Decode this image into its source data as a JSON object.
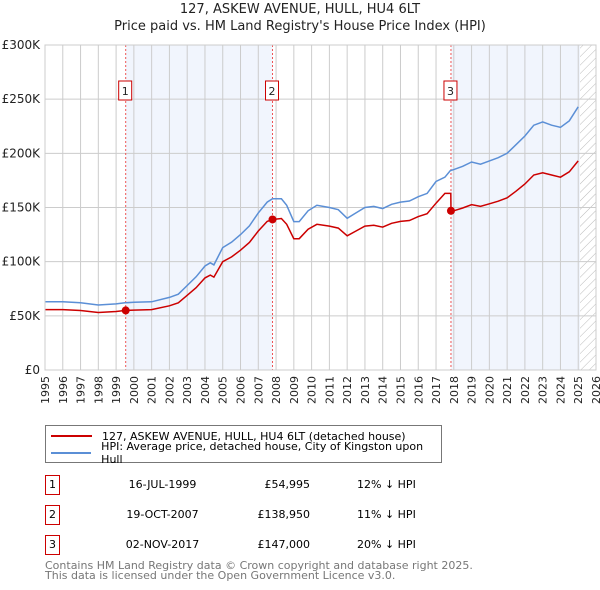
{
  "title": "127, ASKEW AVENUE, HULL, HU4 6LT",
  "subtitle": "Price paid vs. HM Land Registry's House Price Index (HPI)",
  "chart_data": {
    "type": "line",
    "title": "127, ASKEW AVENUE, HULL, HU4 6LT",
    "xlim": [
      1995,
      2026
    ],
    "ylim": [
      0,
      300000
    ],
    "yticks": [
      0,
      50000,
      100000,
      150000,
      200000,
      250000,
      300000
    ],
    "ytick_labels": [
      "£0",
      "£50K",
      "£100K",
      "£150K",
      "£200K",
      "£250K",
      "£300K"
    ],
    "xticks": [
      "1995",
      "1996",
      "1997",
      "1998",
      "1999",
      "2000",
      "2001",
      "2002",
      "2003",
      "2004",
      "2005",
      "2006",
      "2007",
      "2008",
      "2009",
      "2010",
      "2011",
      "2012",
      "2013",
      "2014",
      "2015",
      "2016",
      "2017",
      "2018",
      "2019",
      "2020",
      "2021",
      "2022",
      "2023",
      "2024",
      "2025",
      "2026"
    ],
    "grid": true,
    "forecast_hatch_from": 2025.1,
    "series": [
      {
        "name": "127, ASKEW AVENUE, HULL, HU4 6LT (detached house)",
        "color": "#cc0000",
        "x": [
          1995,
          1996,
          1997,
          1998,
          1999,
          1999.54,
          2000,
          2001,
          2002,
          2002.5,
          2003,
          2003.5,
          2004,
          2004.3,
          2004.5,
          2005,
          2005.5,
          2006,
          2006.5,
          2007,
          2007.5,
          2007.8,
          2008.3,
          2008.6,
          2009,
          2009.3,
          2009.8,
          2010.3,
          2011,
          2011.5,
          2012,
          2012.5,
          2013,
          2013.5,
          2014,
          2014.5,
          2015,
          2015.5,
          2016,
          2016.5,
          2017,
          2017.5,
          2017.83,
          2017.84,
          2018,
          2018.5,
          2019,
          2019.5,
          2020,
          2020.5,
          2021,
          2021.5,
          2022,
          2022.5,
          2023,
          2023.5,
          2024,
          2024.5,
          2025
        ],
        "y": [
          55800,
          55800,
          54900,
          53100,
          54000,
          54995,
          55300,
          55800,
          59300,
          62000,
          69000,
          76000,
          85000,
          87600,
          85800,
          100000,
          104400,
          110600,
          117700,
          128300,
          137200,
          138950,
          139800,
          134500,
          121200,
          121200,
          130000,
          134500,
          132800,
          131000,
          123900,
          128300,
          132800,
          133600,
          131900,
          135400,
          137200,
          138000,
          141600,
          144300,
          154000,
          163000,
          163000,
          147000,
          147000,
          149500,
          152600,
          151000,
          153400,
          155800,
          159000,
          165000,
          171700,
          180000,
          182000,
          180000,
          178000,
          183000,
          193000
        ]
      },
      {
        "name": "HPI: Average price, detached house, City of Kingston upon Hull",
        "color": "#5b8fd6",
        "x": [
          1995,
          1996,
          1997,
          1998,
          1999,
          1999.5,
          2000,
          2001,
          2002,
          2002.5,
          2003,
          2003.5,
          2004,
          2004.3,
          2004.5,
          2005,
          2005.5,
          2006,
          2006.5,
          2007,
          2007.5,
          2007.8,
          2008.3,
          2008.6,
          2009,
          2009.3,
          2009.8,
          2010.3,
          2011,
          2011.5,
          2012,
          2012.5,
          2013,
          2013.5,
          2014,
          2014.5,
          2015,
          2015.5,
          2016,
          2016.5,
          2017,
          2017.5,
          2017.8,
          2018,
          2018.5,
          2019,
          2019.5,
          2020,
          2020.5,
          2021,
          2021.5,
          2022,
          2022.5,
          2023,
          2023.5,
          2024,
          2024.5,
          2025
        ],
        "y": [
          63000,
          63000,
          62000,
          60000,
          61000,
          62000,
          62500,
          63000,
          67000,
          70000,
          78000,
          86000,
          96000,
          99000,
          97000,
          113000,
          118000,
          125000,
          133000,
          145000,
          155000,
          158000,
          158000,
          152000,
          137000,
          137000,
          147000,
          152000,
          150000,
          148000,
          140000,
          145000,
          150000,
          151000,
          149000,
          153000,
          155000,
          156000,
          160000,
          163000,
          174000,
          178000,
          184000,
          185000,
          188000,
          192000,
          190000,
          193000,
          196000,
          200000,
          208000,
          216000,
          226000,
          229000,
          226000,
          224000,
          230000,
          243000
        ]
      }
    ],
    "annotations": [
      {
        "label": "1",
        "x": 1999.54,
        "y": 54995
      },
      {
        "label": "2",
        "x": 2007.8,
        "y": 138950
      },
      {
        "label": "3",
        "x": 2017.84,
        "y": 147000
      }
    ],
    "shaded_ranges": [
      [
        1999.54,
        2007.8
      ],
      [
        2017.84,
        2025.1
      ]
    ]
  },
  "legend": [
    {
      "label": "127, ASKEW AVENUE, HULL, HU4 6LT (detached house)",
      "color": "#cc0000"
    },
    {
      "label": "HPI: Average price, detached house, City of Kingston upon Hull",
      "color": "#5b8fd6"
    }
  ],
  "transactions": [
    {
      "num": "1",
      "date": "16-JUL-1999",
      "price": "£54,995",
      "hpi": "12% ↓ HPI"
    },
    {
      "num": "2",
      "date": "19-OCT-2007",
      "price": "£138,950",
      "hpi": "11% ↓ HPI"
    },
    {
      "num": "3",
      "date": "02-NOV-2017",
      "price": "£147,000",
      "hpi": "20% ↓ HPI"
    }
  ],
  "footer": [
    "Contains HM Land Registry data © Crown copyright and database right 2025.",
    "This data is licensed under the Open Government Licence v3.0."
  ]
}
